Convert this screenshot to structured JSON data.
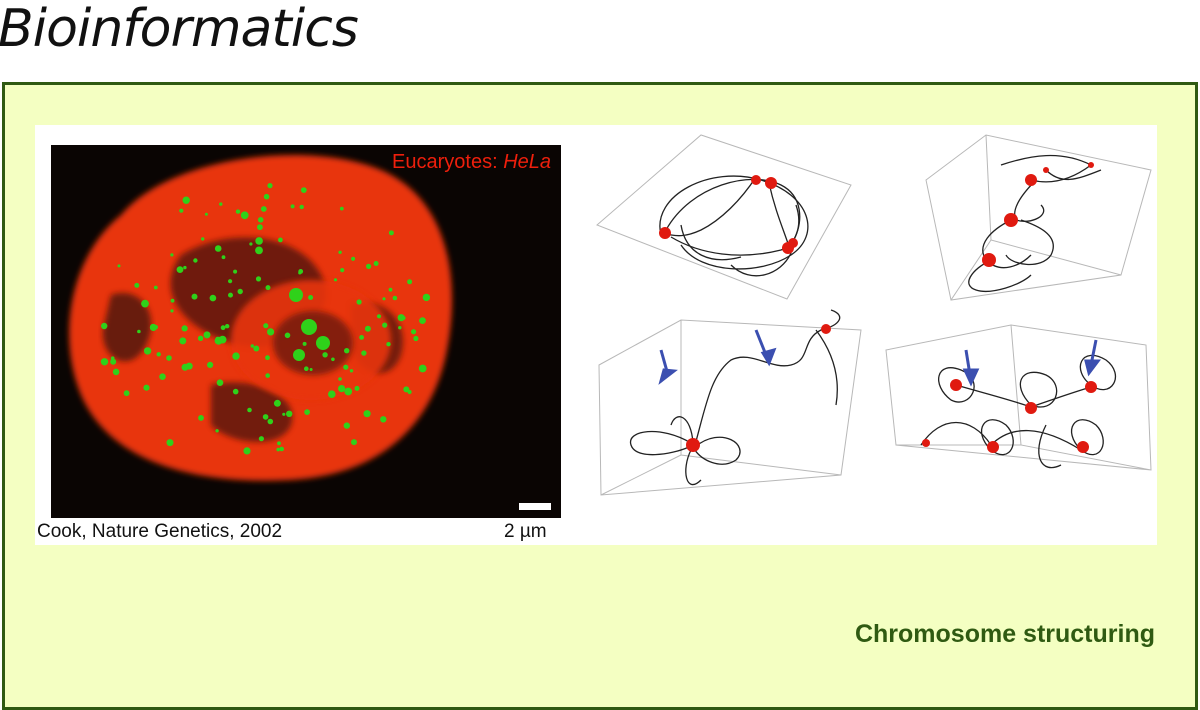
{
  "slide": {
    "title": "Bioinformatics",
    "caption": "Chromosome structuring"
  },
  "figure": {
    "image_label_prefix": "Eucaryotes: ",
    "image_label_italic": "HeLa",
    "credit": "Cook, Nature Genetics, 2002",
    "scale": "2 µm"
  },
  "colors": {
    "panel_background": "#f4ffc2",
    "panel_border": "#2f5a12",
    "caption": "#2f5a12",
    "nucleus": "#e8350c",
    "foci": "#2fd11a",
    "arrows": "#3b4fb0",
    "clusters": "#e01a10"
  }
}
